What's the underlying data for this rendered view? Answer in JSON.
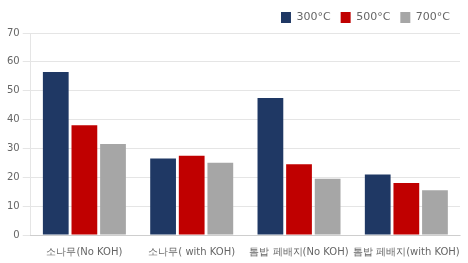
{
  "chart_data": {
    "type": "bar",
    "categories": [
      "소나무(No KOH)",
      "소나무( with KOH)",
      "톰밥 페배지(No KOH)",
      "톰밥 페배지(with KOH)"
    ],
    "series": [
      {
        "name": "300°C",
        "color": "#1F3864",
        "values": [
          56.5,
          26.5,
          47.5,
          21.0
        ]
      },
      {
        "name": "500°C",
        "color": "#C00000",
        "values": [
          38.0,
          27.5,
          24.5,
          18.0
        ]
      },
      {
        "name": "700°C",
        "color": "#A6A6A6",
        "values": [
          31.5,
          25.0,
          19.5,
          15.5
        ]
      }
    ],
    "ylim": [
      0,
      70
    ],
    "yticks": [
      0,
      10,
      20,
      30,
      40,
      50,
      60,
      70
    ],
    "grid": true,
    "legend": "upper right"
  }
}
